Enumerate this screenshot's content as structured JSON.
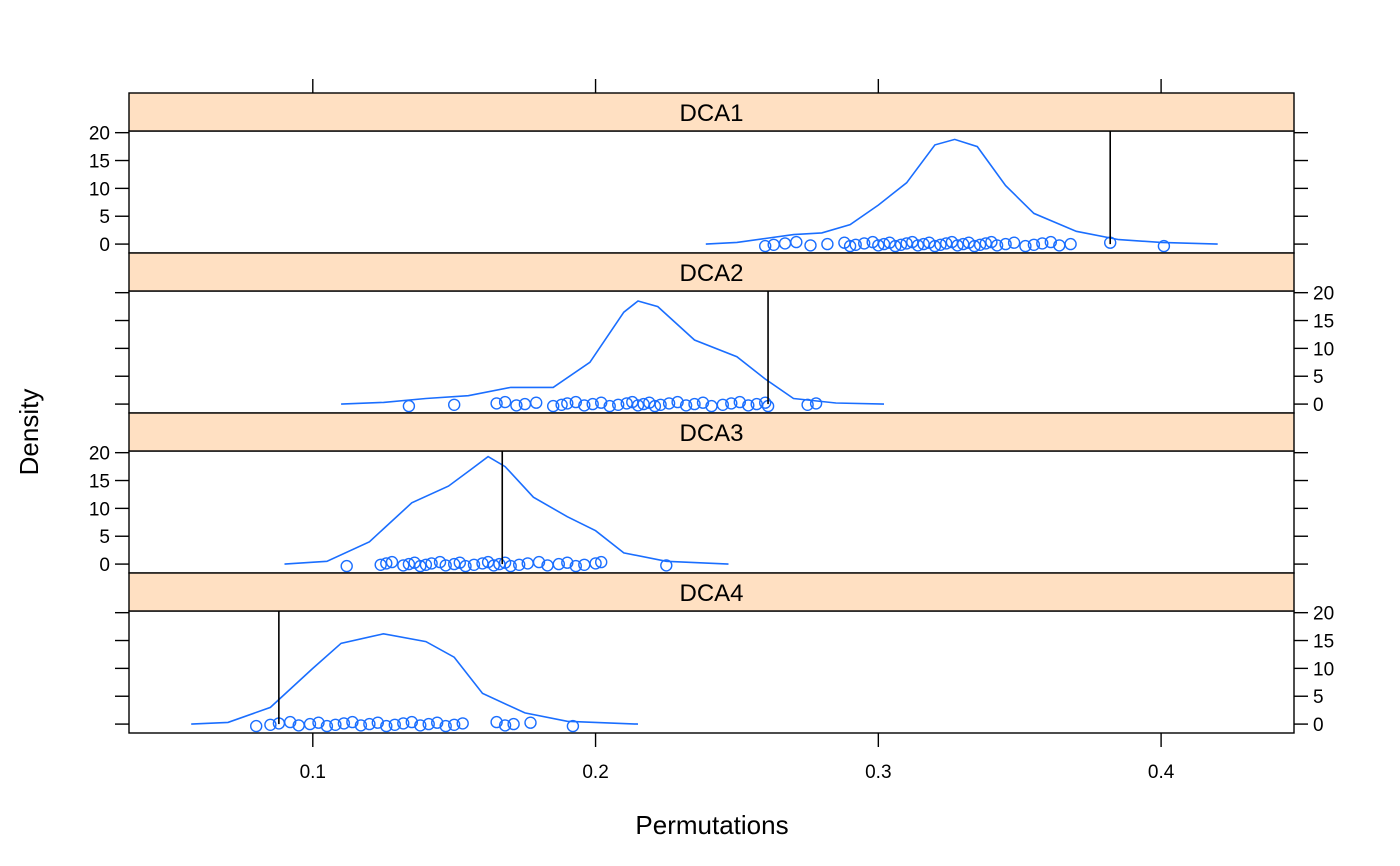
{
  "chart_data": {
    "type": "density",
    "xlabel": "Permutations",
    "ylabel": "Density",
    "xlim": [
      0.035,
      0.447
    ],
    "ylim": [
      -1.6,
      20.3
    ],
    "x_ticks": [
      0.1,
      0.2,
      0.3,
      0.4
    ],
    "x_tick_labels": [
      "0.1",
      "0.2",
      "0.3",
      "0.4"
    ],
    "y_ticks": [
      0,
      5,
      10,
      15,
      20
    ],
    "y_tick_labels": [
      "0",
      "5",
      "10",
      "15",
      "20"
    ],
    "colors": {
      "density": "#1a6eff",
      "strip": "#ffe0c2",
      "observed": "#000000"
    },
    "panels": [
      {
        "name": "DCA1",
        "observed": 0.382,
        "density": [
          [
            0.239,
            0.0
          ],
          [
            0.25,
            0.3
          ],
          [
            0.26,
            1.0
          ],
          [
            0.27,
            1.7
          ],
          [
            0.28,
            2.0
          ],
          [
            0.29,
            3.5
          ],
          [
            0.3,
            7.0
          ],
          [
            0.31,
            11.0
          ],
          [
            0.32,
            17.8
          ],
          [
            0.327,
            18.8
          ],
          [
            0.335,
            17.5
          ],
          [
            0.345,
            10.5
          ],
          [
            0.355,
            5.5
          ],
          [
            0.37,
            2.3
          ],
          [
            0.385,
            0.8
          ],
          [
            0.4,
            0.3
          ],
          [
            0.42,
            0.0
          ]
        ],
        "points": [
          0.26,
          0.263,
          0.267,
          0.271,
          0.276,
          0.282,
          0.288,
          0.29,
          0.292,
          0.295,
          0.298,
          0.3,
          0.302,
          0.304,
          0.306,
          0.308,
          0.31,
          0.312,
          0.314,
          0.316,
          0.318,
          0.32,
          0.322,
          0.324,
          0.326,
          0.328,
          0.33,
          0.332,
          0.334,
          0.336,
          0.338,
          0.34,
          0.342,
          0.345,
          0.348,
          0.352,
          0.355,
          0.358,
          0.361,
          0.364,
          0.368,
          0.382,
          0.401
        ]
      },
      {
        "name": "DCA2",
        "observed": 0.261,
        "density": [
          [
            0.11,
            0.0
          ],
          [
            0.125,
            0.3
          ],
          [
            0.14,
            1.0
          ],
          [
            0.155,
            1.5
          ],
          [
            0.17,
            3.0
          ],
          [
            0.185,
            3.0
          ],
          [
            0.198,
            7.5
          ],
          [
            0.21,
            16.5
          ],
          [
            0.215,
            18.5
          ],
          [
            0.222,
            17.5
          ],
          [
            0.235,
            11.5
          ],
          [
            0.25,
            8.5
          ],
          [
            0.26,
            4.5
          ],
          [
            0.27,
            1.0
          ],
          [
            0.285,
            0.2
          ],
          [
            0.302,
            0.0
          ]
        ],
        "points": [
          0.134,
          0.15,
          0.165,
          0.168,
          0.172,
          0.175,
          0.179,
          0.185,
          0.188,
          0.19,
          0.193,
          0.196,
          0.199,
          0.202,
          0.205,
          0.208,
          0.211,
          0.213,
          0.215,
          0.217,
          0.219,
          0.221,
          0.223,
          0.226,
          0.229,
          0.232,
          0.235,
          0.238,
          0.241,
          0.245,
          0.248,
          0.251,
          0.254,
          0.257,
          0.26,
          0.261,
          0.275,
          0.278
        ]
      },
      {
        "name": "DCA3",
        "observed": 0.167,
        "density": [
          [
            0.09,
            0.0
          ],
          [
            0.105,
            0.5
          ],
          [
            0.12,
            4.0
          ],
          [
            0.135,
            11.0
          ],
          [
            0.148,
            14.0
          ],
          [
            0.156,
            17.0
          ],
          [
            0.162,
            19.3
          ],
          [
            0.168,
            17.5
          ],
          [
            0.178,
            12.0
          ],
          [
            0.19,
            8.5
          ],
          [
            0.2,
            6.0
          ],
          [
            0.21,
            2.0
          ],
          [
            0.225,
            0.5
          ],
          [
            0.247,
            0.0
          ]
        ],
        "points": [
          0.112,
          0.124,
          0.126,
          0.128,
          0.132,
          0.134,
          0.136,
          0.138,
          0.14,
          0.142,
          0.145,
          0.147,
          0.15,
          0.152,
          0.154,
          0.157,
          0.16,
          0.162,
          0.164,
          0.166,
          0.168,
          0.17,
          0.173,
          0.176,
          0.18,
          0.183,
          0.187,
          0.19,
          0.193,
          0.196,
          0.2,
          0.202,
          0.225
        ]
      },
      {
        "name": "DCA4",
        "observed": 0.088,
        "density": [
          [
            0.057,
            0.0
          ],
          [
            0.07,
            0.3
          ],
          [
            0.085,
            3.0
          ],
          [
            0.1,
            10.0
          ],
          [
            0.11,
            14.5
          ],
          [
            0.125,
            16.2
          ],
          [
            0.14,
            14.8
          ],
          [
            0.15,
            12.0
          ],
          [
            0.16,
            5.5
          ],
          [
            0.175,
            2.0
          ],
          [
            0.19,
            0.5
          ],
          [
            0.215,
            0.0
          ]
        ],
        "points": [
          0.08,
          0.085,
          0.088,
          0.092,
          0.095,
          0.099,
          0.102,
          0.105,
          0.108,
          0.111,
          0.114,
          0.117,
          0.12,
          0.123,
          0.126,
          0.129,
          0.132,
          0.135,
          0.138,
          0.141,
          0.144,
          0.147,
          0.15,
          0.153,
          0.165,
          0.168,
          0.171,
          0.177,
          0.192
        ]
      }
    ]
  }
}
